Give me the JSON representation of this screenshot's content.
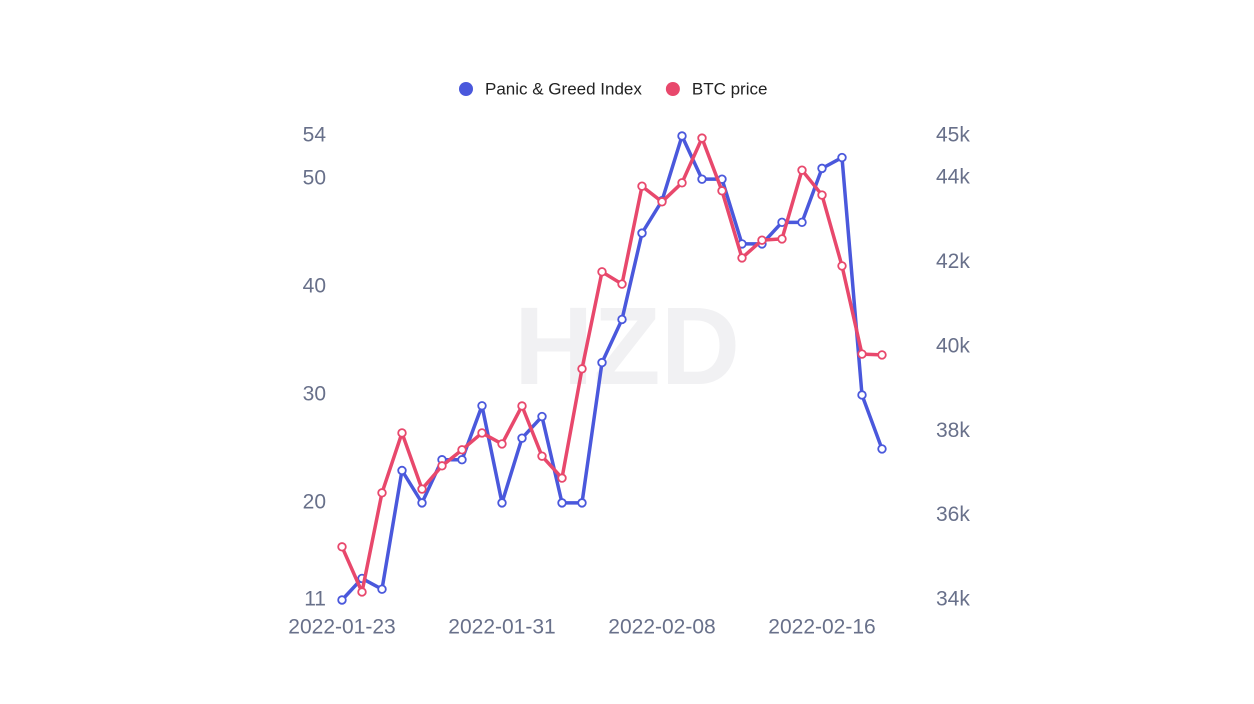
{
  "chart_data": {
    "type": "line",
    "watermark": "HZD",
    "x": [
      "2022-01-23",
      "2022-01-24",
      "2022-01-25",
      "2022-01-26",
      "2022-01-27",
      "2022-01-28",
      "2022-01-29",
      "2022-01-30",
      "2022-01-31",
      "2022-02-01",
      "2022-02-02",
      "2022-02-03",
      "2022-02-04",
      "2022-02-05",
      "2022-02-06",
      "2022-02-07",
      "2022-02-08",
      "2022-02-09",
      "2022-02-10",
      "2022-02-11",
      "2022-02-12",
      "2022-02-13",
      "2022-02-14",
      "2022-02-15",
      "2022-02-16",
      "2022-02-17",
      "2022-02-18",
      "2022-02-19"
    ],
    "series": [
      {
        "name": "Panic & Greed Index",
        "color": "#4a58dc",
        "axis": "y",
        "values": [
          11,
          13,
          12,
          23,
          20,
          24,
          24,
          29,
          20,
          26,
          28,
          20,
          20,
          33,
          37,
          45,
          48,
          54,
          50,
          50,
          44,
          44,
          46,
          46,
          51,
          52,
          30,
          25
        ]
      },
      {
        "name": "BTC price",
        "color": "#e8486c",
        "axis": "y2",
        "values": [
          35260,
          34190,
          36540,
          37960,
          36630,
          37180,
          37560,
          37960,
          37700,
          38600,
          37410,
          36890,
          39480,
          41780,
          41490,
          43810,
          43440,
          43890,
          44950,
          43700,
          42110,
          42530,
          42560,
          44190,
          43600,
          41920,
          39830,
          39810
        ]
      }
    ],
    "ylim": [
      11,
      54
    ],
    "yticks": [
      11,
      20,
      30,
      40,
      50,
      54
    ],
    "y2lim": [
      34000,
      45000
    ],
    "y2ticks": [
      {
        "value": 34000,
        "label": "34k"
      },
      {
        "value": 36000,
        "label": "36k"
      },
      {
        "value": 38000,
        "label": "38k"
      },
      {
        "value": 40000,
        "label": "40k"
      },
      {
        "value": 42000,
        "label": "42k"
      },
      {
        "value": 44000,
        "label": "44k"
      },
      {
        "value": 45000,
        "label": "45k"
      }
    ],
    "xtick_indices": [
      0,
      8,
      16,
      24
    ],
    "grid": false,
    "legend": "top"
  }
}
